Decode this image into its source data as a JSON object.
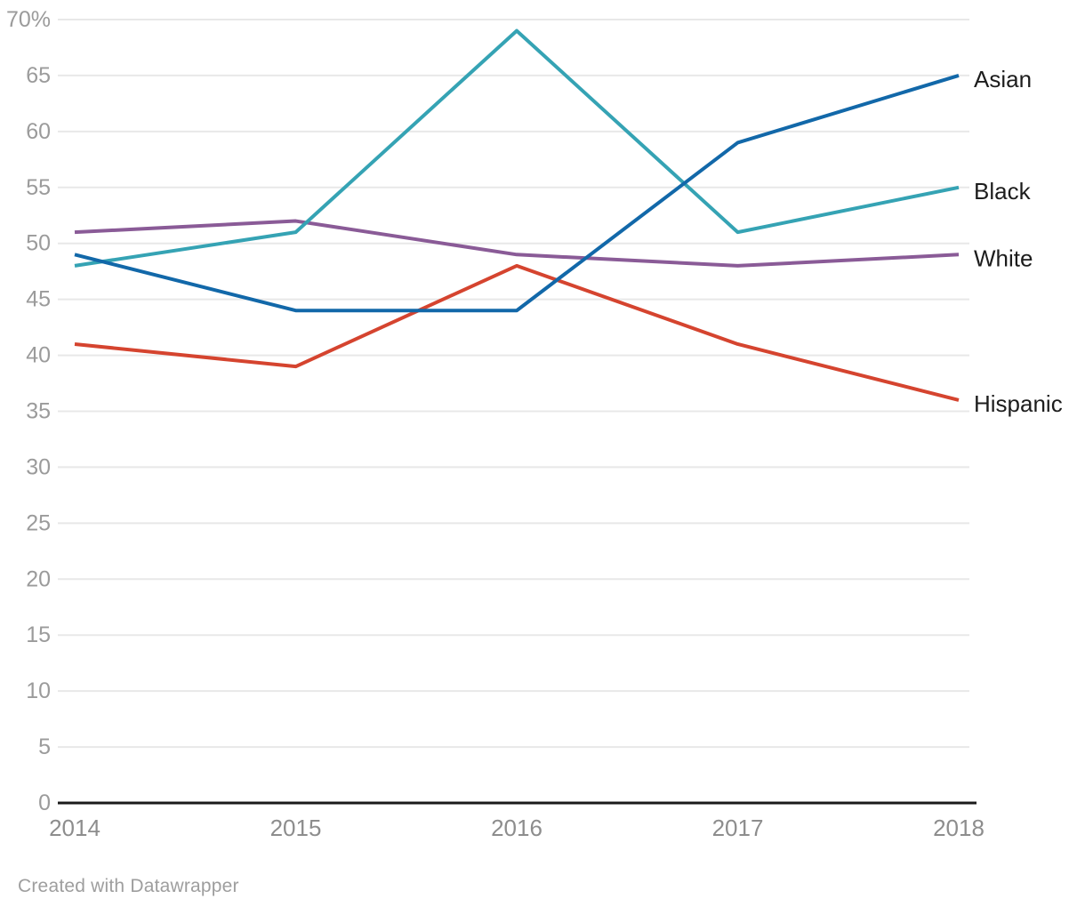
{
  "chart_data": {
    "type": "line",
    "x": [
      2014,
      2015,
      2016,
      2017,
      2018
    ],
    "series": [
      {
        "name": "Asian",
        "color": "#1268a9",
        "values": [
          49,
          44,
          44,
          59,
          65
        ]
      },
      {
        "name": "Black",
        "color": "#35a3b4",
        "values": [
          48,
          51,
          69,
          51,
          55
        ]
      },
      {
        "name": "White",
        "color": "#8a5b97",
        "values": [
          51,
          52,
          49,
          48,
          49
        ]
      },
      {
        "name": "Hispanic",
        "color": "#d5442f",
        "values": [
          41,
          39,
          48,
          41,
          36
        ]
      }
    ],
    "ylim": [
      0,
      70
    ],
    "y_tick_step": 5,
    "y_top_tick_label": "70%",
    "grid": true,
    "legend_position": "right-end-labels",
    "title": "",
    "xlabel": "",
    "ylabel": ""
  },
  "footer": {
    "credit": "Created with Datawrapper"
  },
  "colors": {
    "background": "#ffffff",
    "grid": "#e8e8e8",
    "axis": "#1a1a1a",
    "y_tick_label": "#9b9b9b",
    "x_tick_label": "#8d8d8d",
    "series_label": "#1d1d1d"
  }
}
